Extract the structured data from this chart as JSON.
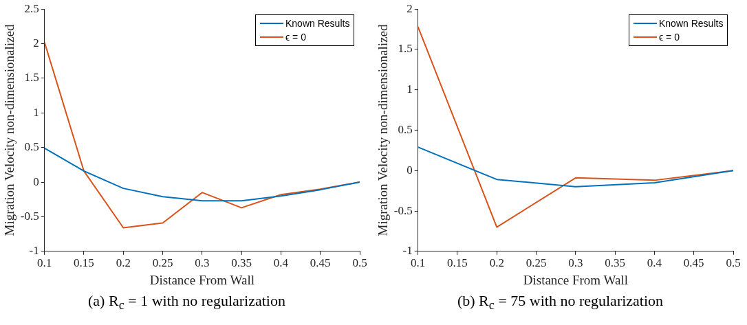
{
  "chart_data": [
    {
      "type": "line",
      "xlabel": "Distance From Wall",
      "ylabel": "Migration Velocity non-dimensionalized",
      "annotations": [
        "(a) R$_{c}$ = 1 with no regularization"
      ],
      "xlim": [
        0.1,
        0.5
      ],
      "xticks": [
        0.1,
        0.15,
        0.2,
        0.25,
        0.3,
        0.35,
        0.4,
        0.45,
        0.5
      ],
      "ylim": [
        -1,
        2.5
      ],
      "yticks": [
        -1,
        -0.5,
        0,
        0.5,
        1,
        1.5,
        2,
        2.5
      ],
      "grid": false,
      "legend": "top right",
      "marker": "none",
      "series": [
        {
          "name": "Known Results",
          "color": "#0072bd",
          "x": [
            0.1,
            0.15,
            0.2,
            0.25,
            0.3,
            0.35,
            0.4,
            0.45,
            0.5
          ],
          "values": [
            0.49,
            0.16,
            -0.09,
            -0.21,
            -0.27,
            -0.27,
            -0.2,
            -0.11,
            0
          ]
        },
        {
          "name": "ϵ = 0",
          "color": "#d95319",
          "x": [
            0.1,
            0.15,
            0.2,
            0.25,
            0.3,
            0.35,
            0.4,
            0.45,
            0.5
          ],
          "values": [
            2.02,
            0.16,
            -0.66,
            -0.59,
            -0.15,
            -0.37,
            -0.18,
            -0.1,
            0
          ]
        }
      ]
    },
    {
      "type": "line",
      "xlabel": "Distance From Wall",
      "ylabel": "Migration Velocity non-dimensionalized",
      "annotations": [
        "(b) R$_{c}$ = 75 with no regularization"
      ],
      "xlim": [
        0.1,
        0.5
      ],
      "xticks": [
        0.1,
        0.15,
        0.2,
        0.25,
        0.3,
        0.35,
        0.4,
        0.45,
        0.5
      ],
      "ylim": [
        -1,
        2
      ],
      "yticks": [
        -1,
        -0.5,
        0,
        0.5,
        1,
        1.5,
        2
      ],
      "grid": false,
      "legend": "top right",
      "marker": "none",
      "series": [
        {
          "name": "Known Results",
          "color": "#0072bd",
          "x": [
            0.1,
            0.2,
            0.3,
            0.4,
            0.5
          ],
          "values": [
            0.29,
            -0.11,
            -0.2,
            -0.15,
            0
          ]
        },
        {
          "name": "ϵ = 0",
          "color": "#d95319",
          "x": [
            0.1,
            0.2,
            0.3,
            0.4,
            0.5
          ],
          "values": [
            1.78,
            -0.7,
            -0.09,
            -0.12,
            0
          ]
        }
      ]
    }
  ]
}
